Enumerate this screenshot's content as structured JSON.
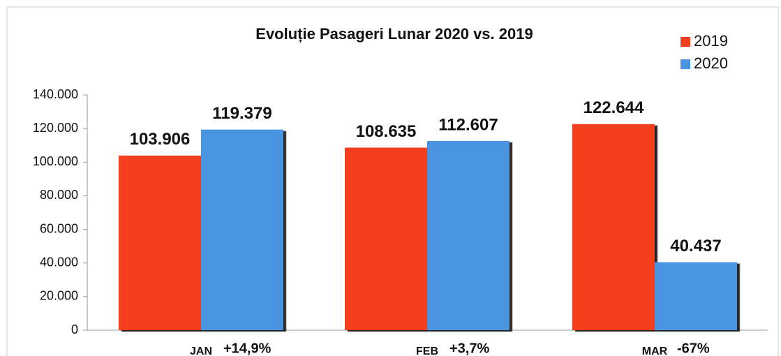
{
  "chart_data": {
    "type": "bar",
    "title": "Evoluție Pasageri Lunar 2020 vs. 2019",
    "categories": [
      "JAN",
      "FEB",
      "MAR"
    ],
    "annotations": [
      "+14,9%",
      "+3,7%",
      "-67%"
    ],
    "annotation_colors": [
      "#111111",
      "#111111",
      "#e8303a"
    ],
    "series": [
      {
        "name": "2019",
        "color": "#f2401e",
        "values": [
          103906,
          108635,
          122644
        ],
        "value_labels": [
          "103.906",
          "108.635",
          "122.644"
        ]
      },
      {
        "name": "2020",
        "color": "#4a93e0",
        "values": [
          119379,
          112607,
          40437
        ],
        "value_labels": [
          "119.379",
          "112.607",
          "40.437"
        ]
      }
    ],
    "ylim": [
      0,
      140000
    ],
    "yticks": [
      0,
      {
        "value": 20000,
        "label": "20.000"
      },
      {
        "value": 40000,
        "label": "40.000"
      },
      {
        "value": 60000,
        "label": "60.000"
      },
      {
        "value": 80000,
        "label": "80.000"
      },
      {
        "value": 100000,
        "label": "100.000"
      },
      {
        "value": 120000,
        "label": "120.000"
      },
      {
        "value": 140000,
        "label": "140.000"
      }
    ],
    "legend": "top-right"
  }
}
